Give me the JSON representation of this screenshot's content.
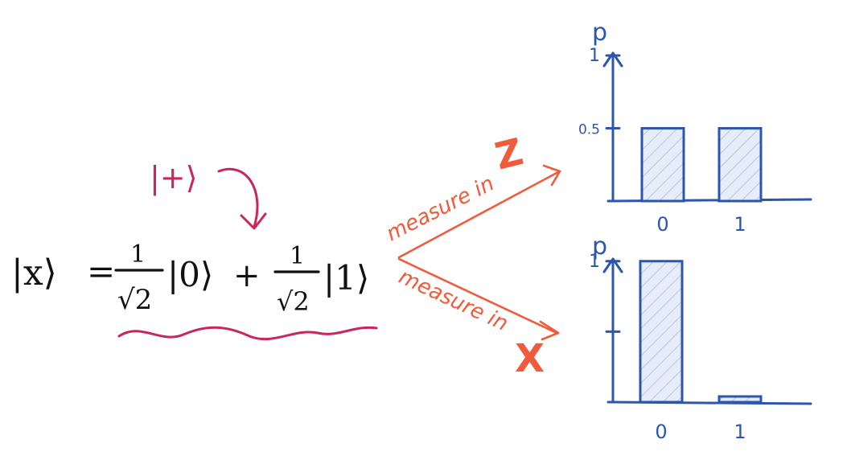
{
  "annotation": {
    "ket_plus": "|+⟩"
  },
  "equation": {
    "lhs": "|x⟩",
    "equals": "=",
    "coef_num": "1",
    "coef_den": "√2",
    "ket0": "|0⟩",
    "plus": "+",
    "ket1": "|1⟩"
  },
  "branches": [
    {
      "label_prefix": "measure in",
      "basis": "Z"
    },
    {
      "label_prefix": "measure in",
      "basis": "X"
    }
  ],
  "colors": {
    "black": "#111111",
    "magenta": "#c8275a",
    "orange": "#f15a3a",
    "blue": "#2b56b0",
    "hatch": "#9fb4dc",
    "hatch_fill": "#e6edf8"
  },
  "chart_data": [
    {
      "type": "bar",
      "ylabel": "p",
      "categories": [
        "0",
        "1"
      ],
      "values": [
        0.5,
        0.5
      ],
      "yticks": [
        {
          "value": 1,
          "label": "1"
        },
        {
          "value": 0.5,
          "label": "0.5"
        }
      ],
      "ylim": [
        0,
        1.05
      ]
    },
    {
      "type": "bar",
      "ylabel": "p",
      "categories": [
        "0",
        "1"
      ],
      "values": [
        1,
        0.04
      ],
      "yticks": [
        {
          "value": 1,
          "label": "1"
        },
        {
          "value": 0.5,
          "label": ""
        }
      ],
      "ylim": [
        0,
        1.05
      ]
    }
  ]
}
